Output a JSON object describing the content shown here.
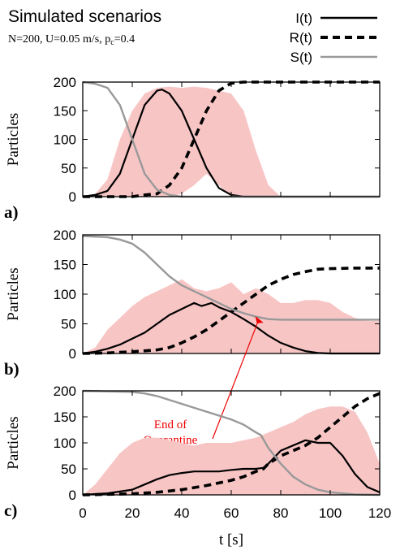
{
  "title": "Simulated scenarios",
  "subtitle_html": "N=200, U=0.05 m/s, p",
  "subtitle_sub": "c",
  "subtitle_tail": "=0.4",
  "legend": [
    {
      "label": "I(t)",
      "style": "solid",
      "color": "#000000"
    },
    {
      "label": "R(t)",
      "style": "dashed",
      "color": "#000000"
    },
    {
      "label": "S(t)",
      "style": "solid",
      "color": "#999999"
    }
  ],
  "colors": {
    "band": "#f8c5c5",
    "infected": "#000000",
    "recovered": "#000000",
    "susceptible": "#999999"
  },
  "xlabel": "t [s]",
  "ylabel": "Particles",
  "x_ticks": [
    "0",
    "20",
    "40",
    "60",
    "80",
    "100",
    "120"
  ],
  "annotation": {
    "line1": "End of",
    "line2": "Quarantine",
    "color": "#ee0000",
    "panel": 2,
    "target_x": 73,
    "target_y": 52
  },
  "chart_data": [
    {
      "type": "line",
      "panel_label": "a)",
      "xlim": [
        0,
        120
      ],
      "ylim": [
        0,
        200
      ],
      "y_ticks": [
        0,
        50,
        100,
        150,
        200
      ],
      "band": {
        "x": [
          0,
          5,
          10,
          15,
          20,
          25,
          30,
          35,
          40,
          45,
          50,
          55,
          60,
          65,
          70,
          75,
          80,
          120
        ],
        "upper": [
          0,
          5,
          30,
          100,
          150,
          180,
          190,
          192,
          190,
          192,
          190,
          185,
          180,
          150,
          80,
          20,
          0,
          0
        ],
        "lower": [
          0,
          0,
          0,
          0,
          0,
          0,
          0,
          0,
          5,
          20,
          40,
          20,
          0,
          0,
          0,
          0,
          0,
          0
        ]
      },
      "series": [
        {
          "name": "I(t)",
          "x": [
            0,
            5,
            10,
            15,
            20,
            25,
            30,
            32,
            35,
            40,
            45,
            50,
            55,
            60,
            65,
            70,
            120
          ],
          "y": [
            0,
            3,
            10,
            40,
            100,
            160,
            185,
            187,
            180,
            150,
            100,
            50,
            15,
            3,
            0,
            0,
            0
          ]
        },
        {
          "name": "R(t)",
          "x": [
            0,
            20,
            25,
            30,
            35,
            40,
            45,
            50,
            55,
            60,
            65,
            70,
            120
          ],
          "y": [
            0,
            0,
            3,
            5,
            20,
            50,
            100,
            150,
            185,
            198,
            200,
            200,
            200
          ]
        },
        {
          "name": "S(t)",
          "x": [
            0,
            5,
            10,
            15,
            20,
            25,
            30,
            35,
            40,
            45,
            120
          ],
          "y": [
            200,
            197,
            190,
            160,
            100,
            40,
            12,
            3,
            0,
            0,
            0
          ]
        }
      ]
    },
    {
      "type": "line",
      "panel_label": "b)",
      "xlim": [
        0,
        120
      ],
      "ylim": [
        0,
        200
      ],
      "y_ticks": [
        0,
        50,
        100,
        150,
        200
      ],
      "band": {
        "x": [
          0,
          5,
          10,
          15,
          20,
          25,
          30,
          35,
          40,
          45,
          50,
          55,
          60,
          65,
          70,
          75,
          80,
          85,
          90,
          95,
          100,
          105,
          110,
          115,
          120
        ],
        "upper": [
          0,
          10,
          40,
          60,
          80,
          95,
          105,
          115,
          125,
          110,
          105,
          110,
          120,
          100,
          110,
          100,
          85,
          85,
          90,
          90,
          85,
          70,
          60,
          55,
          55
        ],
        "lower": [
          0,
          0,
          0,
          0,
          0,
          0,
          0,
          0,
          0,
          0,
          0,
          0,
          0,
          0,
          0,
          0,
          0,
          0,
          0,
          0,
          0,
          0,
          0,
          0,
          0
        ]
      },
      "series": [
        {
          "name": "I(t)",
          "x": [
            0,
            5,
            10,
            15,
            20,
            25,
            30,
            35,
            40,
            45,
            48,
            52,
            55,
            60,
            65,
            70,
            75,
            80,
            85,
            90,
            95,
            100,
            120
          ],
          "y": [
            0,
            3,
            8,
            15,
            25,
            35,
            50,
            65,
            75,
            85,
            80,
            85,
            78,
            70,
            58,
            45,
            30,
            18,
            10,
            4,
            1,
            0,
            0
          ]
        },
        {
          "name": "R(t)",
          "x": [
            0,
            10,
            20,
            30,
            35,
            40,
            45,
            50,
            55,
            60,
            65,
            70,
            75,
            80,
            85,
            90,
            95,
            100,
            110,
            120
          ],
          "y": [
            0,
            1,
            3,
            6,
            10,
            18,
            28,
            40,
            55,
            70,
            85,
            100,
            115,
            125,
            133,
            138,
            142,
            143,
            144,
            144
          ]
        },
        {
          "name": "S(t)",
          "x": [
            0,
            10,
            15,
            20,
            25,
            30,
            35,
            40,
            45,
            50,
            55,
            60,
            65,
            70,
            75,
            80,
            120
          ],
          "y": [
            198,
            196,
            192,
            185,
            170,
            150,
            130,
            115,
            105,
            95,
            85,
            75,
            68,
            62,
            58,
            57,
            57
          ]
        }
      ]
    },
    {
      "type": "line",
      "panel_label": "c)",
      "xlim": [
        0,
        120
      ],
      "ylim": [
        0,
        200
      ],
      "y_ticks": [
        0,
        50,
        100,
        150,
        200
      ],
      "band": {
        "x": [
          0,
          5,
          10,
          15,
          20,
          25,
          30,
          35,
          40,
          45,
          50,
          55,
          60,
          65,
          70,
          75,
          80,
          85,
          90,
          95,
          100,
          105,
          110,
          115,
          120
        ],
        "upper": [
          0,
          20,
          50,
          80,
          100,
          110,
          110,
          105,
          100,
          95,
          100,
          100,
          100,
          105,
          110,
          120,
          130,
          140,
          155,
          165,
          170,
          170,
          160,
          120,
          60
        ],
        "lower": [
          0,
          0,
          0,
          0,
          0,
          0,
          0,
          0,
          0,
          0,
          0,
          0,
          0,
          0,
          0,
          0,
          0,
          0,
          0,
          0,
          0,
          0,
          0,
          0,
          0
        ]
      },
      "series": [
        {
          "name": "I(t)",
          "x": [
            0,
            10,
            20,
            25,
            30,
            35,
            40,
            45,
            50,
            55,
            60,
            65,
            70,
            73,
            75,
            78,
            80,
            85,
            90,
            95,
            100,
            105,
            110,
            115,
            120
          ],
          "y": [
            0,
            3,
            10,
            20,
            30,
            38,
            42,
            45,
            45,
            45,
            48,
            50,
            50,
            52,
            60,
            75,
            85,
            95,
            105,
            100,
            100,
            75,
            40,
            15,
            5
          ]
        },
        {
          "name": "R(t)",
          "x": [
            0,
            20,
            30,
            40,
            50,
            60,
            65,
            70,
            73,
            75,
            80,
            85,
            90,
            95,
            100,
            105,
            110,
            115,
            120
          ],
          "y": [
            0,
            2,
            5,
            10,
            18,
            28,
            35,
            45,
            50,
            60,
            75,
            85,
            95,
            110,
            130,
            150,
            170,
            185,
            195
          ]
        },
        {
          "name": "S(t)",
          "x": [
            0,
            20,
            25,
            30,
            40,
            50,
            60,
            65,
            70,
            72,
            75,
            80,
            85,
            90,
            95,
            100,
            110,
            120
          ],
          "y": [
            200,
            198,
            195,
            190,
            175,
            160,
            145,
            135,
            120,
            115,
            90,
            60,
            35,
            20,
            10,
            5,
            1,
            0
          ]
        }
      ]
    }
  ]
}
